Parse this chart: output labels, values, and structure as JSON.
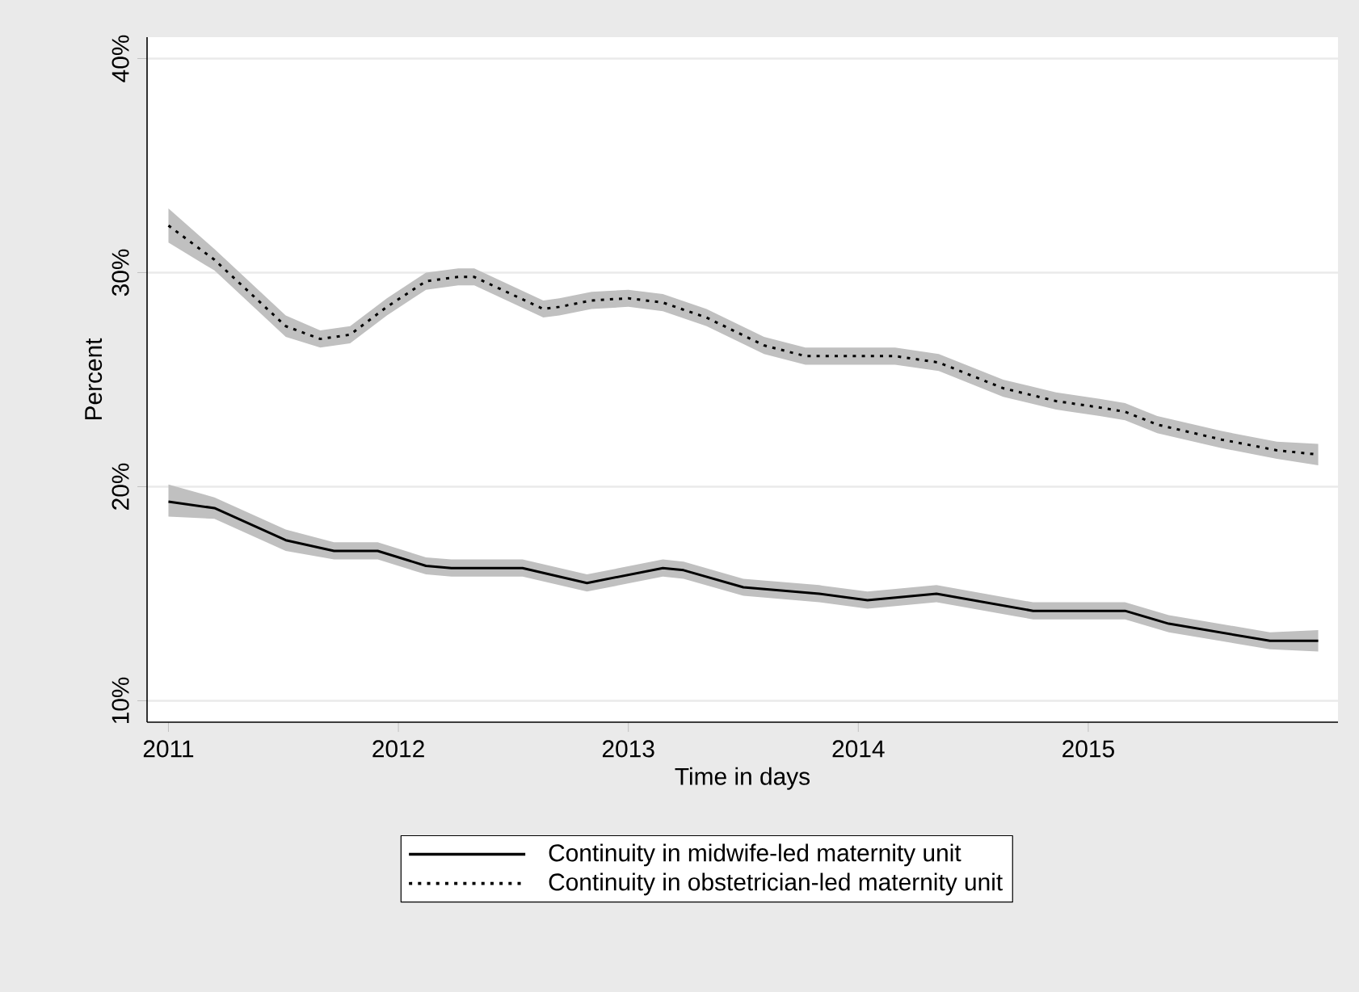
{
  "chart_data": {
    "type": "line",
    "xlabel": "Time in days",
    "ylabel": "Percent",
    "xlim": [
      2010.907,
      2016.086
    ],
    "ylim": [
      9.0,
      41.0
    ],
    "xticks": [
      2011,
      2012,
      2013,
      2014,
      2015
    ],
    "yticks": [
      {
        "value": 10,
        "label": "10%"
      },
      {
        "value": 20,
        "label": "20%"
      },
      {
        "value": 30,
        "label": "30%"
      },
      {
        "value": 40,
        "label": "40%"
      }
    ],
    "grid": "y",
    "legend": "bottom",
    "series": [
      {
        "name": "Continuity in midwife-led maternity unit",
        "color": "#000000",
        "line_style": "solid",
        "x": [
          2011.0,
          2011.2,
          2011.51,
          2011.72,
          2011.91,
          2012.12,
          2012.23,
          2012.54,
          2012.82,
          2013.15,
          2013.24,
          2013.5,
          2013.83,
          2014.04,
          2014.34,
          2014.76,
          2015.16,
          2015.35,
          2015.79,
          2016.0
        ],
        "values": [
          19.3,
          19.0,
          17.5,
          17.0,
          17.0,
          16.3,
          16.2,
          16.2,
          15.5,
          16.2,
          16.1,
          15.3,
          15.0,
          14.7,
          15.0,
          14.2,
          14.2,
          13.6,
          12.8,
          12.8
        ],
        "lower": [
          18.6,
          18.5,
          17.0,
          16.6,
          16.6,
          15.9,
          15.8,
          15.8,
          15.1,
          15.8,
          15.7,
          14.9,
          14.6,
          14.3,
          14.6,
          13.8,
          13.8,
          13.2,
          12.4,
          12.3
        ],
        "upper": [
          20.1,
          19.5,
          18.0,
          17.4,
          17.4,
          16.7,
          16.6,
          16.6,
          15.9,
          16.6,
          16.5,
          15.7,
          15.4,
          15.1,
          15.4,
          14.6,
          14.6,
          14.0,
          13.2,
          13.3
        ]
      },
      {
        "name": "Continuity in obstetrician-led maternity unit",
        "color": "#000000",
        "line_style": "dotted",
        "x": [
          2011.0,
          2011.2,
          2011.51,
          2011.66,
          2011.79,
          2011.95,
          2012.12,
          2012.26,
          2012.33,
          2012.63,
          2012.7,
          2012.84,
          2013.0,
          2013.15,
          2013.34,
          2013.59,
          2013.77,
          2014.16,
          2014.35,
          2014.63,
          2014.86,
          2015.05,
          2015.16,
          2015.3,
          2015.58,
          2015.82,
          2016.0
        ],
        "values": [
          32.2,
          30.6,
          27.5,
          26.9,
          27.1,
          28.4,
          29.6,
          29.8,
          29.8,
          28.3,
          28.4,
          28.7,
          28.8,
          28.6,
          27.9,
          26.6,
          26.1,
          26.1,
          25.8,
          24.6,
          24.0,
          23.7,
          23.5,
          22.9,
          22.2,
          21.7,
          21.5
        ],
        "lower": [
          31.4,
          30.1,
          27.0,
          26.5,
          26.7,
          28.0,
          29.2,
          29.4,
          29.4,
          27.9,
          28.0,
          28.3,
          28.4,
          28.2,
          27.5,
          26.2,
          25.7,
          25.7,
          25.4,
          24.2,
          23.6,
          23.3,
          23.1,
          22.5,
          21.8,
          21.3,
          21.0
        ],
        "upper": [
          33.0,
          31.1,
          28.0,
          27.3,
          27.5,
          28.8,
          30.0,
          30.2,
          30.2,
          28.7,
          28.8,
          29.1,
          29.2,
          29.0,
          28.3,
          27.0,
          26.5,
          26.5,
          26.2,
          25.0,
          24.4,
          24.1,
          23.9,
          23.3,
          22.6,
          22.1,
          22.0
        ]
      }
    ]
  }
}
